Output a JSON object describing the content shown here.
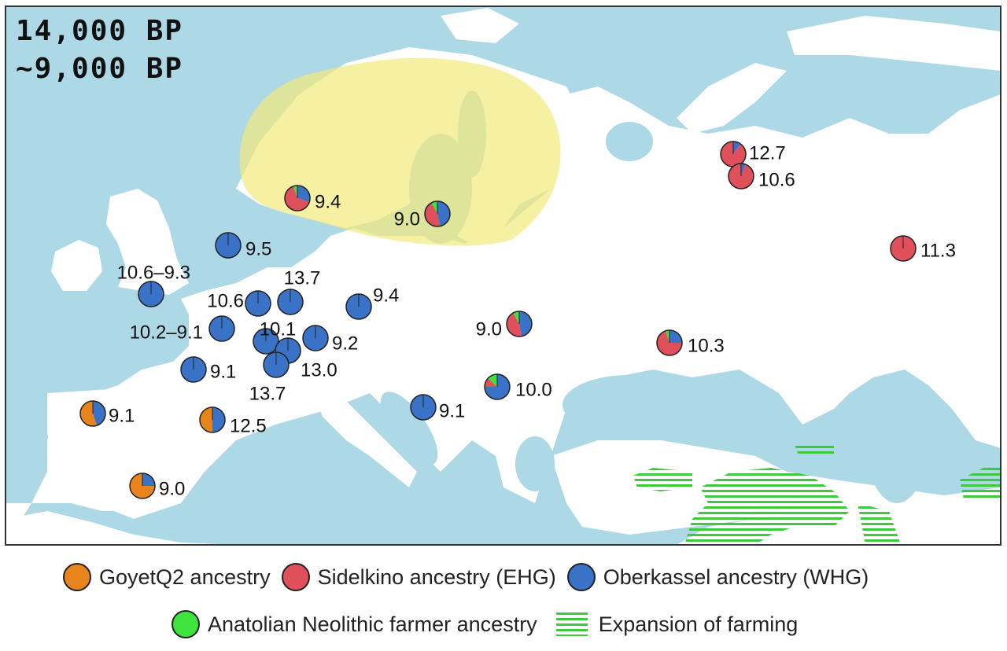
{
  "time_labels": {
    "start": "14,000 BP",
    "end": "~9,000 BP"
  },
  "colors": {
    "sea": "#add8e6",
    "land": "#ffffff",
    "yellow_zone": "#f2ea7a",
    "goyet": "#e8841c",
    "sidelkino": "#e0505a",
    "oberkassel": "#3a72c8",
    "anatolian": "#3ee33e",
    "farming": "#3ec83e"
  },
  "legend": {
    "goyet": "GoyetQ2 ancestry",
    "sidelkino": "Sidelkino ancestry (EHG)",
    "oberkassel": "Oberkassel ancestry (WHG)",
    "anatolian": "Anatolian Neolithic farmer ancestry",
    "farming": "Expansion of farming"
  },
  "samples": [
    {
      "label": "9.4",
      "ancestry": {
        "oberkassel": 0.3,
        "sidelkino": 0.65,
        "anatolian": 0.05
      }
    },
    {
      "label": "9.0",
      "ancestry": {
        "oberkassel": 0.47,
        "sidelkino": 0.45,
        "anatolian": 0.08
      }
    },
    {
      "label": "12.7",
      "ancestry": {
        "oberkassel": 0.1,
        "sidelkino": 0.9
      }
    },
    {
      "label": "10.6",
      "ancestry": {
        "oberkassel": 0.06,
        "sidelkino": 0.94
      }
    },
    {
      "label": "11.3",
      "ancestry": {
        "oberkassel": 0.01,
        "sidelkino": 0.99
      }
    },
    {
      "label": "9.5",
      "ancestry": {
        "oberkassel": 1.0
      }
    },
    {
      "label": "10.6–9.3",
      "ancestry": {
        "oberkassel": 1.0
      }
    },
    {
      "label": "10.6",
      "ancestry": {
        "oberkassel": 1.0
      }
    },
    {
      "label": "13.7",
      "ancestry": {
        "oberkassel": 1.0
      }
    },
    {
      "label": "9.4",
      "ancestry": {
        "oberkassel": 1.0
      }
    },
    {
      "label": "10.2–9.1",
      "ancestry": {
        "oberkassel": 1.0
      }
    },
    {
      "label": "10.1",
      "ancestry": {
        "oberkassel": 1.0
      }
    },
    {
      "label": "9.2",
      "ancestry": {
        "oberkassel": 1.0
      }
    },
    {
      "label": "13.0",
      "ancestry": {
        "oberkassel": 1.0
      }
    },
    {
      "label": "13.7",
      "ancestry": {
        "oberkassel": 1.0
      }
    },
    {
      "label": "9.1",
      "ancestry": {
        "oberkassel": 1.0
      }
    },
    {
      "label": "9.0",
      "ancestry": {
        "oberkassel": 0.47,
        "sidelkino": 0.45,
        "anatolian": 0.08
      }
    },
    {
      "label": "10.3",
      "ancestry": {
        "oberkassel": 0.25,
        "sidelkino": 0.7,
        "anatolian": 0.05
      }
    },
    {
      "label": "10.0",
      "ancestry": {
        "oberkassel": 0.75,
        "sidelkino": 0.12,
        "anatolian": 0.13
      }
    },
    {
      "label": "9.1",
      "ancestry": {
        "oberkassel": 1.0
      }
    },
    {
      "label": "9.1",
      "ancestry": {
        "oberkassel": 0.45,
        "goyet": 0.55
      }
    },
    {
      "label": "12.5",
      "ancestry": {
        "oberkassel": 0.5,
        "goyet": 0.5
      }
    },
    {
      "label": "9.0",
      "ancestry": {
        "oberkassel": 0.25,
        "goyet": 0.75
      }
    }
  ]
}
